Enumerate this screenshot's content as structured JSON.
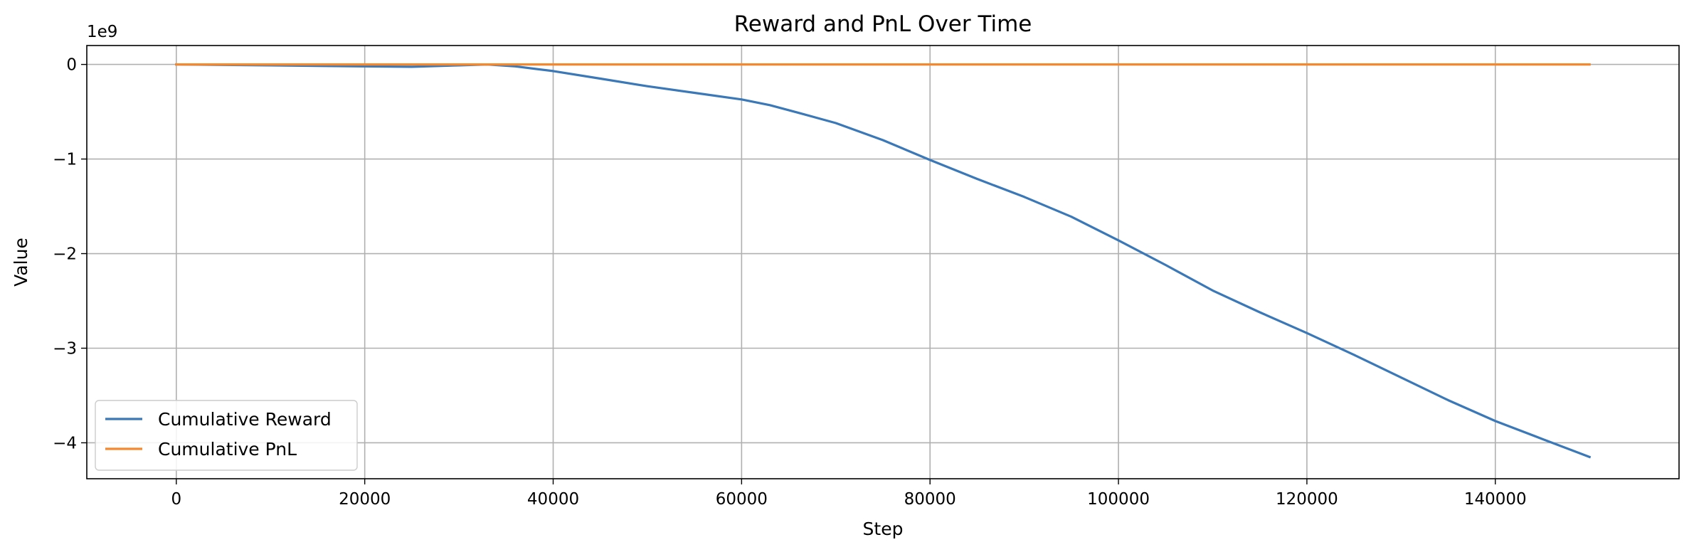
{
  "chart_data": {
    "type": "line",
    "title": "Reward and PnL Over Time",
    "xlabel": "Step",
    "ylabel": "Value",
    "y_scale_label": "1e9",
    "xlim": [
      -9500,
      159500
    ],
    "ylim": [
      -4.38,
      0.2
    ],
    "x_ticks": [
      0,
      20000,
      40000,
      60000,
      80000,
      100000,
      120000,
      140000
    ],
    "x_tick_labels": [
      "0",
      "20000",
      "40000",
      "60000",
      "80000",
      "100000",
      "120000",
      "140000"
    ],
    "y_ticks": [
      0,
      -1,
      -2,
      -3,
      -4
    ],
    "y_tick_labels": [
      "0",
      "−1",
      "−2",
      "−3",
      "−4"
    ],
    "grid": true,
    "legend_position": "lower-left",
    "series": [
      {
        "name": "Cumulative Reward",
        "color": "#3a78b8",
        "x": [
          0,
          5000,
          10000,
          15000,
          20000,
          25000,
          30000,
          33000,
          36000,
          40000,
          45000,
          50000,
          55000,
          60000,
          63000,
          66000,
          70000,
          75000,
          80000,
          85000,
          90000,
          95000,
          100000,
          105000,
          110000,
          115000,
          120000,
          125000,
          130000,
          135000,
          140000,
          145000,
          150000
        ],
        "y": [
          0,
          -0.005,
          -0.01,
          -0.015,
          -0.02,
          -0.025,
          -0.01,
          0,
          -0.02,
          -0.07,
          -0.15,
          -0.23,
          -0.3,
          -0.37,
          -0.43,
          -0.51,
          -0.62,
          -0.8,
          -1.01,
          -1.21,
          -1.4,
          -1.61,
          -1.86,
          -2.12,
          -2.39,
          -2.62,
          -2.84,
          -3.07,
          -3.31,
          -3.55,
          -3.77,
          -3.96,
          -4.15
        ]
      },
      {
        "name": "Cumulative PnL",
        "color": "#f5882c",
        "x": [
          0,
          30000,
          60000,
          90000,
          120000,
          150000
        ],
        "y": [
          0,
          0,
          0,
          0,
          0,
          0
        ]
      }
    ]
  }
}
